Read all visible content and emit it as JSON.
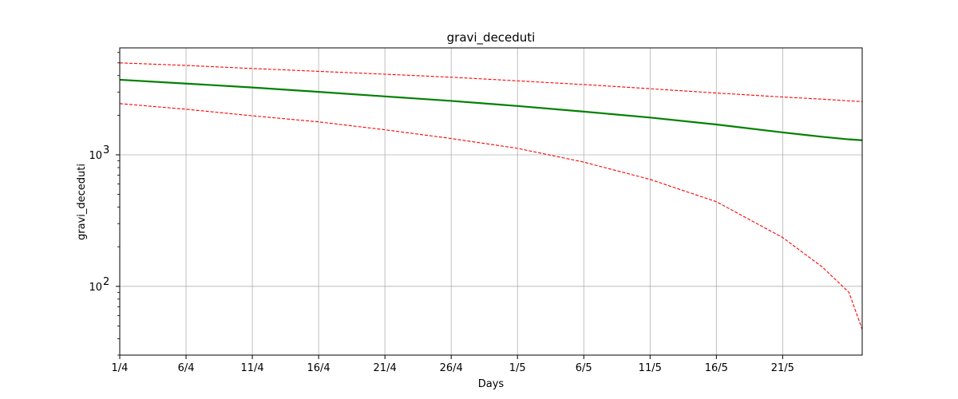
{
  "chart_data": {
    "type": "line",
    "title": "gravi_deceduti",
    "xlabel": "Days",
    "ylabel": "gravi_deceduti",
    "yscale": "log",
    "ylim": [
      30,
      6500
    ],
    "xlim": [
      "2020-04-01",
      "2020-05-27"
    ],
    "x_tick_labels": [
      "1/4",
      "6/4",
      "11/4",
      "16/4",
      "21/4",
      "26/4",
      "1/5",
      "6/5",
      "11/5",
      "16/5",
      "21/5"
    ],
    "y_major_ticks": [
      {
        "value": 100,
        "label": "10",
        "exp": "2"
      },
      {
        "value": 1000,
        "label": "10",
        "exp": "3"
      }
    ],
    "grid": true,
    "x": [
      "2020-04-01",
      "2020-04-06",
      "2020-04-11",
      "2020-04-16",
      "2020-04-21",
      "2020-04-26",
      "2020-05-01",
      "2020-05-06",
      "2020-05-11",
      "2020-05-16",
      "2020-05-21",
      "2020-05-24",
      "2020-05-26",
      "2020-05-27"
    ],
    "series": [
      {
        "color": "#008000",
        "style": "solid",
        "values": [
          3720,
          3480,
          3250,
          3010,
          2780,
          2570,
          2350,
          2130,
          1920,
          1700,
          1480,
          1370,
          1310,
          1290
        ]
      },
      {
        "color": "#ff0000",
        "style": "dashed",
        "values": [
          5000,
          4780,
          4530,
          4310,
          4100,
          3890,
          3650,
          3420,
          3180,
          2950,
          2750,
          2650,
          2570,
          2540
        ]
      },
      {
        "color": "#ff0000",
        "style": "dashed",
        "values": [
          2450,
          2220,
          1980,
          1780,
          1550,
          1330,
          1120,
          880,
          650,
          440,
          235,
          140,
          90,
          47
        ]
      }
    ]
  }
}
